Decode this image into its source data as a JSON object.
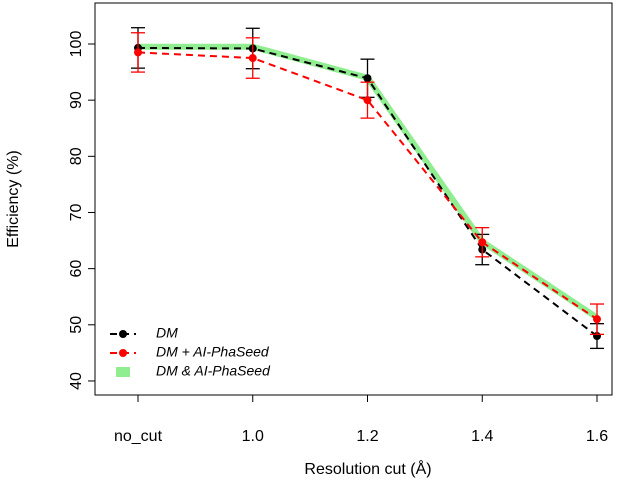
{
  "chart_data": {
    "type": "line",
    "x_label": "Resolution cut (Å)",
    "y_label": "Efficiency (%)",
    "categories": [
      "no_cut",
      "1.0",
      "1.2",
      "1.4",
      "1.6"
    ],
    "ylim": [
      37.5,
      107.3
    ],
    "yticks": [
      40,
      50,
      60,
      70,
      80,
      90,
      100
    ],
    "legend_position": "bottomleft",
    "series": [
      {
        "name": "DM & AI-PhaSeed",
        "color": "#90ee90",
        "style": "thick",
        "values": [
          99.5,
          99.5,
          94.0,
          64.8,
          51.3
        ]
      },
      {
        "name": "DM",
        "color": "#000000",
        "style": "dashed-points",
        "values": [
          99.3,
          99.2,
          93.9,
          63.4,
          48.0
        ],
        "errors": [
          3.6,
          3.6,
          3.4,
          2.7,
          2.2
        ]
      },
      {
        "name": "DM + AI-PhaSeed",
        "color": "#ff0000",
        "style": "dashed-points",
        "values": [
          98.5,
          97.5,
          90.0,
          64.7,
          51.0
        ],
        "errors": [
          3.5,
          3.6,
          3.2,
          2.6,
          2.7
        ]
      }
    ]
  }
}
